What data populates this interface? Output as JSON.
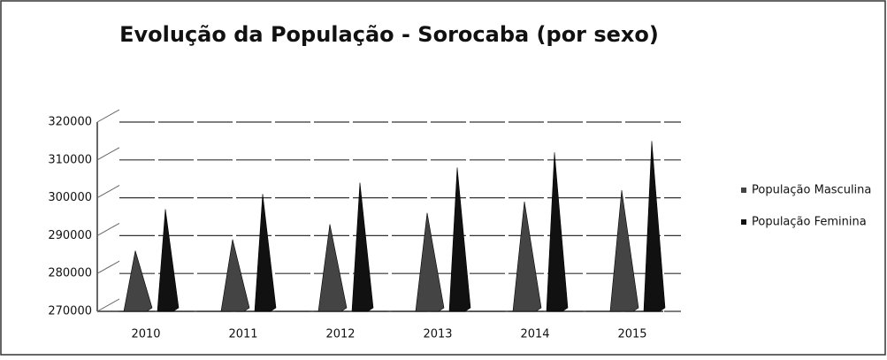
{
  "chart_data": {
    "type": "pyramid",
    "title": "Evolução da População - Sorocaba (por sexo)",
    "categories": [
      "2010",
      "2011",
      "2012",
      "2013",
      "2014",
      "2015"
    ],
    "series": [
      {
        "name": "População Masculina",
        "color": "#444444",
        "values": [
          286000,
          289000,
          293000,
          296000,
          299000,
          302000
        ]
      },
      {
        "name": "População Feminina",
        "color": "#111111",
        "values": [
          297000,
          301000,
          304000,
          308000,
          312000,
          315000
        ]
      }
    ],
    "ylim": [
      270000,
      320000
    ],
    "yticks": [
      270000,
      280000,
      290000,
      300000,
      310000,
      320000
    ],
    "grid": true
  }
}
